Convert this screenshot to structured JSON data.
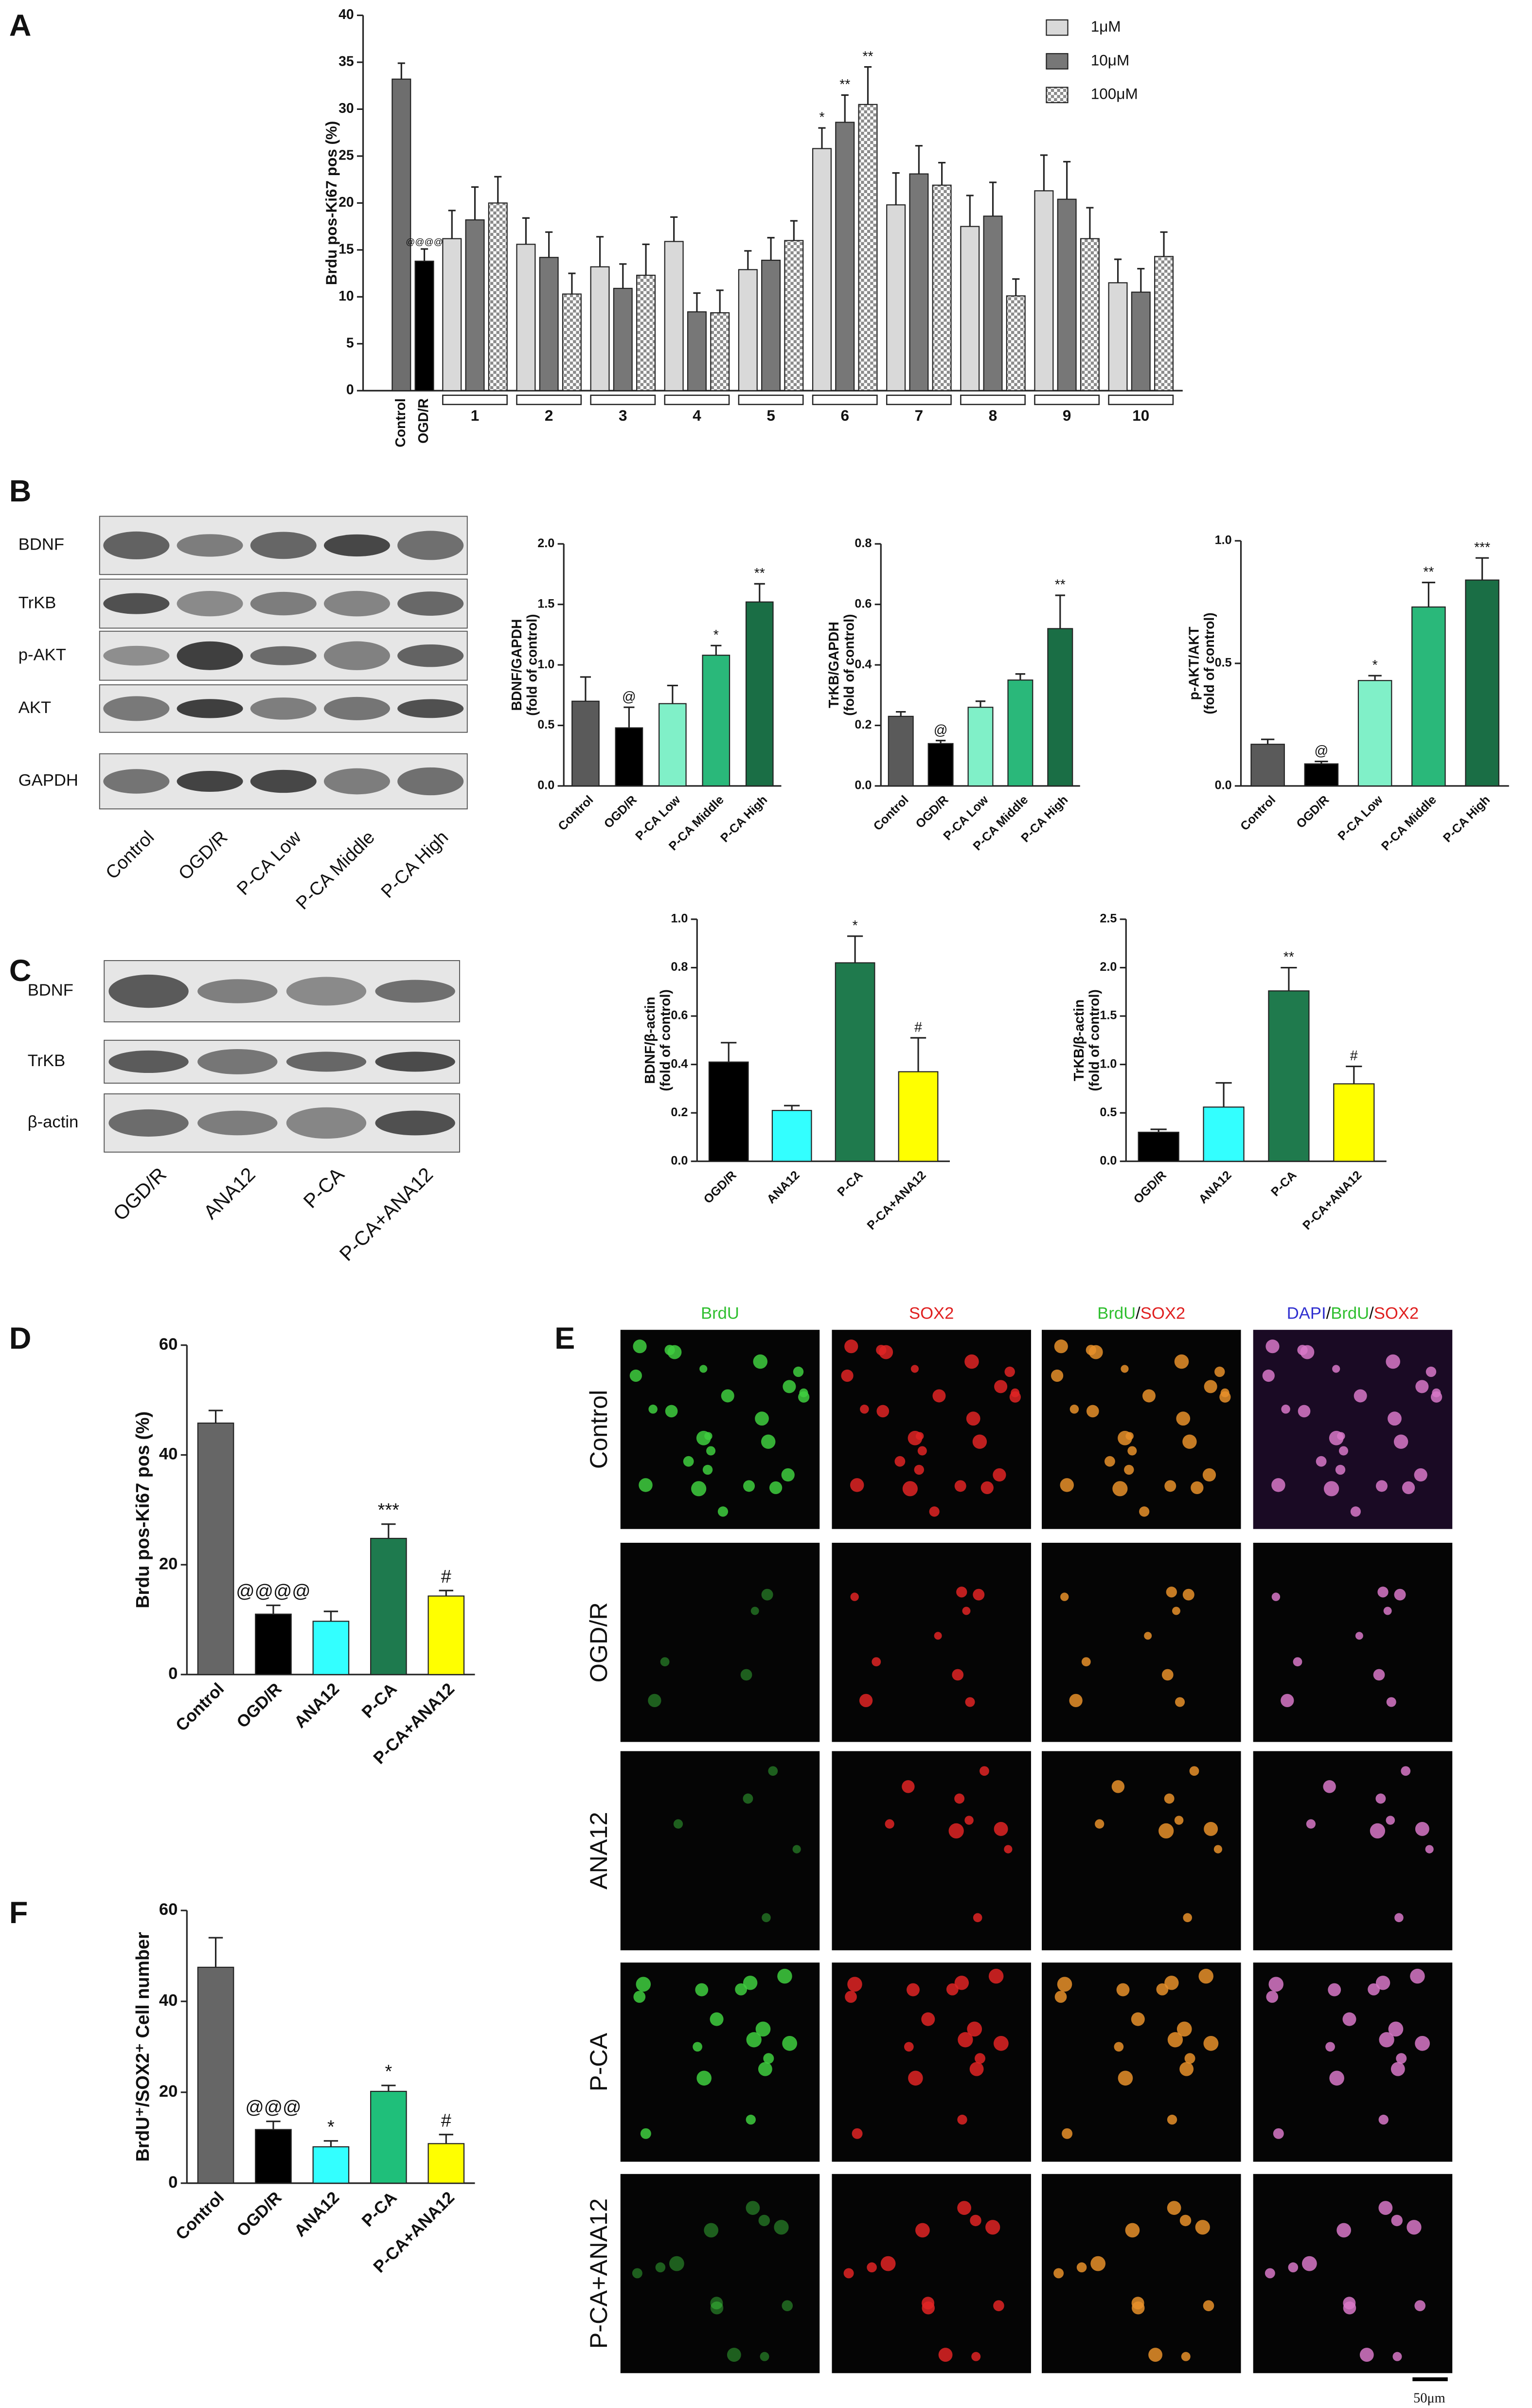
{
  "panel_labels": [
    "A",
    "B",
    "C",
    "D",
    "E",
    "F"
  ],
  "blots": [
    {
      "rows": [
        "BDNF",
        "TrKB",
        "p-AKT",
        "AKT",
        "GAPDH"
      ],
      "lanes": [
        "Control",
        "OGD/R",
        "P-CA Low",
        "P-CA Middle",
        "P-CA High"
      ]
    },
    {
      "rows": [
        "BDNF",
        "TrKB",
        "β-actin"
      ],
      "lanes": [
        "OGD/R",
        "ANA12",
        "P-CA",
        "P-CA+ANA12"
      ]
    }
  ],
  "micrographs": {
    "columns": [
      [
        {
          "text": "BrdU",
          "color": "#2fbf2f"
        }
      ],
      [
        {
          "text": "SOX2",
          "color": "#e02020"
        }
      ],
      [
        {
          "text": "BrdU",
          "color": "#2fbf2f"
        },
        {
          "text": "/",
          "color": "#111111"
        },
        {
          "text": "SOX2",
          "color": "#e02020"
        }
      ],
      [
        {
          "text": "DAPI",
          "color": "#3030d0"
        },
        {
          "text": "/",
          "color": "#111111"
        },
        {
          "text": "BrdU",
          "color": "#2fbf2f"
        },
        {
          "text": "/",
          "color": "#111111"
        },
        {
          "text": "SOX2",
          "color": "#e02020"
        }
      ]
    ],
    "rows": [
      "Control",
      "OGD/R",
      "ANA12",
      "P-CA",
      "P-CA+ANA12"
    ],
    "scale_bar": "50μm"
  },
  "chart_data": [
    {
      "type": "grouped_bar",
      "ylabel": "Brdu pos-Ki67 pos (%)",
      "ylim": [
        0,
        40
      ],
      "yticks": [
        0,
        5,
        10,
        15,
        20,
        25,
        30,
        35,
        40
      ],
      "legend": "top-right",
      "reference": {
        "categories": [
          "Control",
          "OGD/R"
        ],
        "values": [
          33.2,
          13.8
        ],
        "errors": [
          1.7,
          1.3
        ],
        "colors": [
          "#6e6e6e",
          "#000000"
        ],
        "annotations": [
          null,
          "@@@@"
        ]
      },
      "categories": [
        "1",
        "2",
        "3",
        "4",
        "5",
        "6",
        "7",
        "8",
        "9",
        "10"
      ],
      "series": [
        {
          "name": "1μM",
          "color": "#d9d9d9",
          "values": [
            16.2,
            15.6,
            13.2,
            15.9,
            12.9,
            25.8,
            19.8,
            17.5,
            21.3,
            11.5
          ],
          "errors": [
            3,
            2.8,
            3.2,
            2.6,
            2,
            2.2,
            3.4,
            3.3,
            3.8,
            2.5
          ],
          "annotations": [
            null,
            null,
            null,
            null,
            null,
            "*",
            null,
            null,
            null,
            null
          ]
        },
        {
          "name": "10μM",
          "color": "#777777",
          "values": [
            18.2,
            14.2,
            10.9,
            8.4,
            13.9,
            28.6,
            23.1,
            18.6,
            20.4,
            10.5
          ],
          "errors": [
            3.5,
            2.7,
            2.6,
            2,
            2.4,
            2.9,
            3,
            3.6,
            4,
            2.5
          ],
          "annotations": [
            null,
            null,
            null,
            null,
            null,
            "**",
            null,
            null,
            null,
            null
          ]
        },
        {
          "name": "100μM",
          "color": "#9a9a9a",
          "pattern": "checker",
          "values": [
            20,
            10.3,
            12.3,
            8.3,
            16,
            30.5,
            21.9,
            10.1,
            16.2,
            14.3
          ],
          "errors": [
            2.8,
            2.2,
            3.3,
            2.4,
            2.1,
            4,
            2.4,
            1.8,
            3.3,
            2.6
          ],
          "annotations": [
            null,
            null,
            null,
            null,
            null,
            "**",
            null,
            null,
            null,
            null
          ]
        }
      ]
    },
    {
      "type": "bar",
      "ylabel": [
        "BDNF/GAPDH",
        "(fold of control)"
      ],
      "ylim": [
        0,
        2
      ],
      "yticks": [
        {
          "value": 0,
          "label": "0.0"
        },
        {
          "value": 0.5,
          "label": "0.5"
        },
        {
          "value": 1,
          "label": "1.0"
        },
        {
          "value": 1.5,
          "label": "1.5"
        },
        {
          "value": 2,
          "label": "2.0"
        }
      ],
      "categories": [
        "Control",
        "OGD/R",
        "P-CA Low",
        "P-CA Middle",
        "P-CA High"
      ],
      "values": [
        0.7,
        0.48,
        0.68,
        1.08,
        1.52
      ],
      "errors": [
        0.2,
        0.17,
        0.15,
        0.08,
        0.15
      ],
      "colors": [
        "#5a5a5a",
        "#000000",
        "#80f0c8",
        "#2ab87a",
        "#1a6e45"
      ],
      "annotations": [
        null,
        "@",
        null,
        "*",
        "**"
      ]
    },
    {
      "type": "bar",
      "ylabel": [
        "TrKB/GAPDH",
        "(fold of control)"
      ],
      "ylim": [
        0,
        0.8
      ],
      "yticks": [
        {
          "value": 0,
          "label": "0.0"
        },
        0.2,
        0.4,
        0.6,
        0.8
      ],
      "categories": [
        "Control",
        "OGD/R",
        "P-CA Low",
        "P-CA Middle",
        "P-CA High"
      ],
      "values": [
        0.23,
        0.14,
        0.26,
        0.35,
        0.52
      ],
      "errors": [
        0.015,
        0.01,
        0.02,
        0.02,
        0.11
      ],
      "colors": [
        "#5a5a5a",
        "#000000",
        "#80f0c8",
        "#2ab87a",
        "#1a6e45"
      ],
      "annotations": [
        null,
        "@",
        null,
        null,
        "**"
      ]
    },
    {
      "type": "bar",
      "ylabel": [
        "p-AKT/AKT",
        "(fold of control)"
      ],
      "ylim": [
        0,
        1
      ],
      "yticks": [
        {
          "value": 0,
          "label": "0.0"
        },
        0.5,
        {
          "value": 1,
          "label": "1.0"
        }
      ],
      "categories": [
        "Control",
        "OGD/R",
        "P-CA Low",
        "P-CA Middle",
        "P-CA High"
      ],
      "values": [
        0.17,
        0.09,
        0.43,
        0.73,
        0.84
      ],
      "errors": [
        0.02,
        0.01,
        0.02,
        0.1,
        0.09
      ],
      "colors": [
        "#5a5a5a",
        "#000000",
        "#80f0c8",
        "#2ab87a",
        "#1a6e45"
      ],
      "annotations": [
        null,
        "@",
        "*",
        "**",
        "***"
      ]
    },
    {
      "type": "bar",
      "ylabel": [
        "BDNF/β-actin",
        "(fold of control)"
      ],
      "ylim": [
        0,
        1
      ],
      "yticks": [
        {
          "value": 0,
          "label": "0.0"
        },
        0.2,
        0.4,
        0.6,
        0.8,
        {
          "value": 1,
          "label": "1.0"
        }
      ],
      "categories": [
        "OGD/R",
        "ANA12",
        "P-CA",
        "P-CA+ANA12"
      ],
      "values": [
        0.41,
        0.21,
        0.82,
        0.37
      ],
      "errors": [
        0.08,
        0.02,
        0.11,
        0.14
      ],
      "colors": [
        "#000000",
        "#33ffff",
        "#1f7a4d",
        "#ffff00"
      ],
      "annotations": [
        null,
        null,
        "*",
        "#"
      ]
    },
    {
      "type": "bar",
      "ylabel": [
        "TrKB/β-actin",
        "(fold of control)"
      ],
      "ylim": [
        0,
        2.5
      ],
      "yticks": [
        {
          "value": 0,
          "label": "0.0"
        },
        0.5,
        {
          "value": 1,
          "label": "1.0"
        },
        1.5,
        {
          "value": 2,
          "label": "2.0"
        },
        2.5
      ],
      "categories": [
        "OGD/R",
        "ANA12",
        "P-CA",
        "P-CA+ANA12"
      ],
      "values": [
        0.3,
        0.56,
        1.76,
        0.8
      ],
      "errors": [
        0.03,
        0.25,
        0.24,
        0.18
      ],
      "colors": [
        "#000000",
        "#33ffff",
        "#1f7a4d",
        "#ffff00"
      ],
      "annotations": [
        null,
        null,
        "**",
        "#"
      ]
    },
    {
      "type": "bar",
      "ylabel": "Brdu pos-Ki67 pos (%)",
      "ylim": [
        0,
        60
      ],
      "yticks": [
        0,
        20,
        40,
        60
      ],
      "categories": [
        "Control",
        "OGD/R",
        "ANA12",
        "P-CA",
        "P-CA+ANA12"
      ],
      "values": [
        45.8,
        11,
        9.7,
        24.8,
        14.3
      ],
      "errors": [
        2.3,
        1.6,
        1.8,
        2.6,
        1
      ],
      "colors": [
        "#666666",
        "#000000",
        "#33ffff",
        "#1e7a4e",
        "#ffff00"
      ],
      "annotations": [
        null,
        "@@@@",
        null,
        "***",
        "#"
      ]
    },
    {
      "type": "bar",
      "ylabel": "BrdU⁺/SOX2⁺ Cell number",
      "ylim": [
        0,
        60
      ],
      "yticks": [
        0,
        20,
        40,
        60
      ],
      "categories": [
        "Control",
        "OGD/R",
        "ANA12",
        "P-CA",
        "P-CA+ANA12"
      ],
      "values": [
        47.5,
        11.8,
        8,
        20.2,
        8.7
      ],
      "errors": [
        6.5,
        1.8,
        1.3,
        1.3,
        2
      ],
      "colors": [
        "#666666",
        "#000000",
        "#33ffff",
        "#1fbf7a",
        "#ffff00"
      ],
      "annotations": [
        null,
        "@@@",
        "*",
        "*",
        "#"
      ]
    }
  ]
}
